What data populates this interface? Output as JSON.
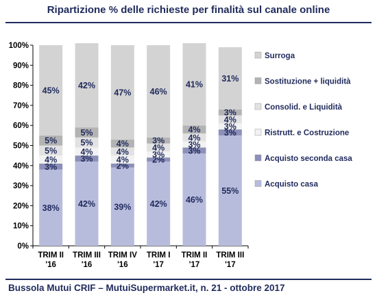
{
  "title": "Ripartizione % delle richieste per finalità sul canale online",
  "footer": "Bussola Mutui CRIF – MutuiSupermarket.it, n. 21 - ottobre 2017",
  "chart_data": {
    "type": "bar",
    "stacked": true,
    "percent": true,
    "categories": [
      [
        "TRIM II",
        "'16"
      ],
      [
        "TRIM III",
        "'16"
      ],
      [
        "TRIM IV",
        "'16"
      ],
      [
        "TRIM I",
        "'17"
      ],
      [
        "TRIM II",
        "'17"
      ],
      [
        "TRIM III",
        "'17"
      ]
    ],
    "ylim": [
      0,
      100
    ],
    "yticks": [
      0,
      10,
      20,
      30,
      40,
      50,
      60,
      70,
      80,
      90,
      100
    ],
    "ytick_labels": [
      "0%",
      "10%",
      "20%",
      "30%",
      "40%",
      "50%",
      "60%",
      "70%",
      "80%",
      "90%",
      "100%"
    ],
    "legend_position": "right",
    "series": [
      {
        "name": "Acquisto casa",
        "color": "#b8bcdc",
        "values": [
          38,
          42,
          39,
          42,
          46,
          55
        ],
        "labels": [
          "38%",
          "42%",
          "39%",
          "42%",
          "46%",
          "55%"
        ]
      },
      {
        "name": "Acquisto seconda casa",
        "color": "#8c90b8",
        "values": [
          3,
          3,
          2,
          2,
          3,
          3
        ],
        "labels": [
          "3%",
          "3%",
          "2%",
          "2%",
          "3%",
          "3%"
        ]
      },
      {
        "name": "Ristrutt. e Costruzione",
        "color": "#f2f2f2",
        "values": [
          4,
          4,
          4,
          3,
          3,
          3
        ],
        "labels": [
          "4%",
          "4%",
          "4%",
          "3%",
          "3%",
          "3%"
        ]
      },
      {
        "name": "Consolid. e Liquidità",
        "color": "#e2e2e2",
        "values": [
          5,
          5,
          4,
          4,
          4,
          4
        ],
        "labels": [
          "5%",
          "5%",
          "4%",
          "4%",
          "4%",
          "4%"
        ]
      },
      {
        "name": "Sostituzione + liquidità",
        "color": "#b3b3b3",
        "values": [
          5,
          5,
          4,
          3,
          4,
          3
        ],
        "labels": [
          "5%",
          "5%",
          "4%",
          "3%",
          "4%",
          "3%"
        ]
      },
      {
        "name": "Surroga",
        "color": "#d3d3d3",
        "values": [
          45,
          42,
          47,
          46,
          41,
          31
        ],
        "labels": [
          "45%",
          "42%",
          "47%",
          "46%",
          "41%",
          "31%"
        ]
      }
    ]
  }
}
